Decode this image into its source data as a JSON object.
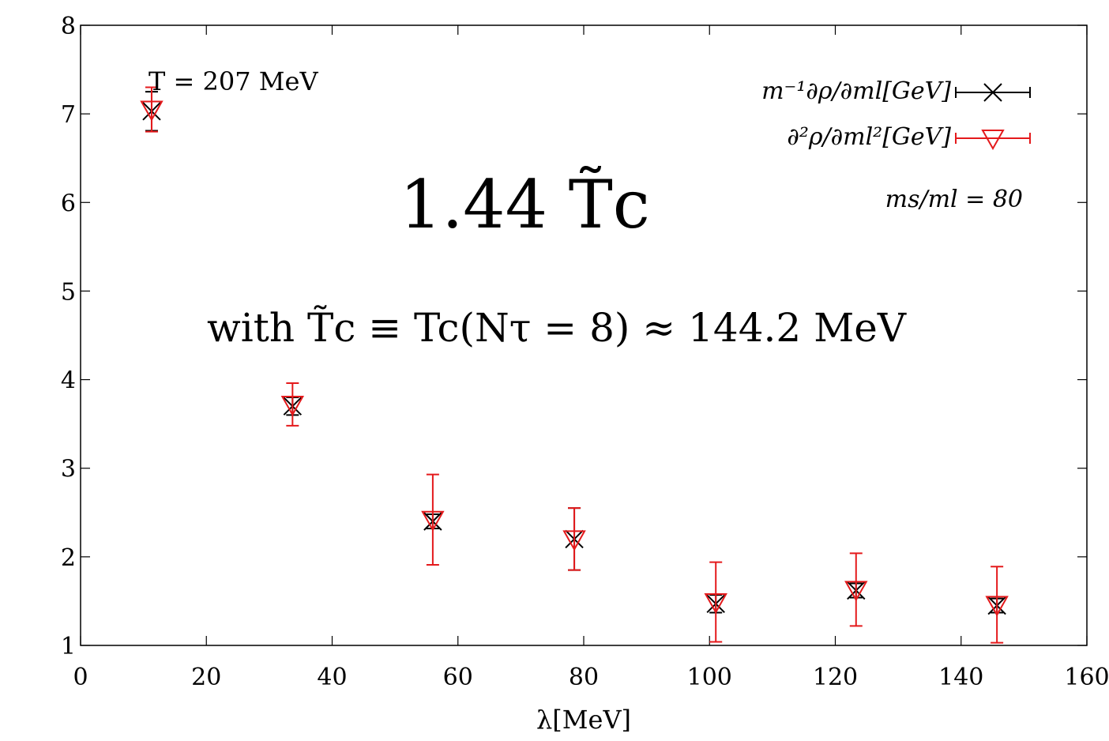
{
  "chart_data": {
    "type": "scatter",
    "title": "",
    "xlabel": "λ[MeV]",
    "ylabel": "",
    "xlim": [
      0,
      160
    ],
    "ylim": [
      1,
      8
    ],
    "x_ticks": [
      "0",
      "20",
      "40",
      "60",
      "80",
      "100",
      "120",
      "140",
      "160"
    ],
    "y_ticks": [
      "1",
      "2",
      "3",
      "4",
      "5",
      "6",
      "7",
      "8"
    ],
    "grid": false,
    "legend_position": "top-right",
    "annotations": {
      "temperature": "T = 207 MeV",
      "big_label": "1.44 T̃c",
      "definition": "with T̃c ≡ Tc(Nτ = 8) ≈ 144.2 MeV",
      "mass_ratio": "ms/ml = 80"
    },
    "series": [
      {
        "name": "m⁻¹∂ρ/∂ml[GeV]",
        "marker": "x",
        "color": "#000000",
        "x": [
          11.3,
          33.7,
          56.0,
          78.5,
          101.0,
          123.3,
          145.7
        ],
        "y": [
          7.03,
          3.7,
          2.4,
          2.2,
          1.47,
          1.62,
          1.45
        ],
        "yerr": [
          0.22,
          0.1,
          0.08,
          0.35,
          0.1,
          0.08,
          0.08
        ]
      },
      {
        "name": "∂²ρ/∂ml²[GeV]",
        "marker": "triangle-down",
        "color": "#e41a1c",
        "x": [
          11.3,
          33.7,
          56.0,
          78.5,
          101.0,
          123.3,
          145.7
        ],
        "y": [
          7.05,
          3.72,
          2.42,
          2.2,
          1.49,
          1.63,
          1.46
        ],
        "yerr": [
          0.25,
          0.24,
          0.51,
          0.35,
          0.45,
          0.41,
          0.43
        ]
      }
    ]
  }
}
